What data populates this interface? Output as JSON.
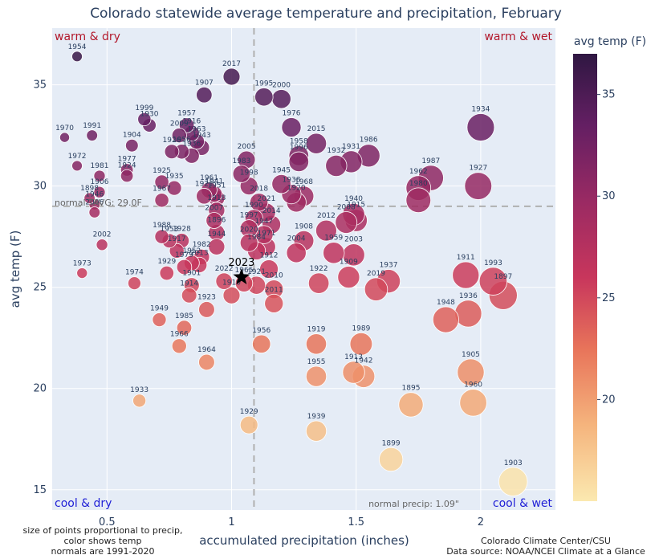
{
  "title": "Colorado statewide average temperature and precipitation, February",
  "chart_data": {
    "type": "scatter",
    "title": "Colorado statewide average temperature and precipitation, February",
    "xlabel": "accumulated precipitation (inches)",
    "ylabel": "avg temp (F)",
    "xlim": [
      0.28,
      2.3
    ],
    "ylim": [
      14.0,
      37.8
    ],
    "x_ticks": [
      "0.5",
      "1",
      "1.5",
      "2"
    ],
    "y_ticks": [
      "15",
      "20",
      "25",
      "30",
      "35"
    ],
    "grid": true,
    "point_size": "proportional to precip",
    "point_color": "avg temp",
    "normal_precip": 1.09,
    "normal_temp": 29.0,
    "normal_precip_label": "normal precip: 1.09\"",
    "normal_temp_label": "normal TAVG: 29.0F",
    "highlight": {
      "label": "2023",
      "x": 1.04,
      "y": 25.5
    },
    "quadrants": {
      "top_left": "warm & dry",
      "top_right": "warm & wet",
      "bottom_left": "cool & dry",
      "bottom_right": "cool & wet"
    },
    "colorbar": {
      "title": "avg temp (F)",
      "ticks": [
        "20",
        "25",
        "30",
        "35"
      ],
      "range": [
        15,
        37
      ],
      "colors": [
        "#fbe9b0",
        "#f5b47d",
        "#e8745a",
        "#c8365c",
        "#9a2a63",
        "#641f63",
        "#2f1742"
      ]
    },
    "points": [
      {
        "year": "1954",
        "x": 0.38,
        "y": 36.4
      },
      {
        "year": "2017",
        "x": 1.0,
        "y": 35.4
      },
      {
        "year": "1907",
        "x": 0.89,
        "y": 34.5
      },
      {
        "year": "1995",
        "x": 1.13,
        "y": 34.4
      },
      {
        "year": "2000",
        "x": 1.2,
        "y": 34.3
      },
      {
        "year": "1976",
        "x": 1.24,
        "y": 32.9
      },
      {
        "year": "1934",
        "x": 2.0,
        "y": 32.9
      },
      {
        "year": "1999",
        "x": 0.65,
        "y": 33.3
      },
      {
        "year": "1930",
        "x": 0.67,
        "y": 33.0
      },
      {
        "year": "1957",
        "x": 0.82,
        "y": 33.0
      },
      {
        "year": "1916",
        "x": 0.84,
        "y": 32.6
      },
      {
        "year": "2009",
        "x": 0.79,
        "y": 32.5
      },
      {
        "year": "1963",
        "x": 0.86,
        "y": 32.2
      },
      {
        "year": "1943",
        "x": 0.88,
        "y": 31.9
      },
      {
        "year": "1970",
        "x": 0.33,
        "y": 32.4
      },
      {
        "year": "1991",
        "x": 0.44,
        "y": 32.5
      },
      {
        "year": "1904",
        "x": 0.6,
        "y": 32.0
      },
      {
        "year": "1926",
        "x": 0.76,
        "y": 31.7
      },
      {
        "year": "1956b",
        "x": 0.8,
        "y": 31.7
      },
      {
        "year": "1936",
        "x": 0.84,
        "y": 31.5
      },
      {
        "year": "2015",
        "x": 1.34,
        "y": 32.1
      },
      {
        "year": "1986",
        "x": 1.55,
        "y": 31.5
      },
      {
        "year": "1931",
        "x": 1.48,
        "y": 31.2
      },
      {
        "year": "1958",
        "x": 1.27,
        "y": 31.5
      },
      {
        "year": "1996",
        "x": 1.27,
        "y": 31.2
      },
      {
        "year": "1932",
        "x": 1.42,
        "y": 31.0
      },
      {
        "year": "2005",
        "x": 1.06,
        "y": 31.3
      },
      {
        "year": "1972",
        "x": 0.38,
        "y": 31.0
      },
      {
        "year": "1981",
        "x": 0.47,
        "y": 30.5
      },
      {
        "year": "1977",
        "x": 0.58,
        "y": 30.8
      },
      {
        "year": "1924",
        "x": 0.58,
        "y": 30.5
      },
      {
        "year": "1925",
        "x": 0.72,
        "y": 30.2
      },
      {
        "year": "1935",
        "x": 0.77,
        "y": 29.9
      },
      {
        "year": "1983",
        "x": 1.04,
        "y": 30.6
      },
      {
        "year": "1998",
        "x": 1.07,
        "y": 30.0
      },
      {
        "year": "1945",
        "x": 1.2,
        "y": 30.1
      },
      {
        "year": "1987",
        "x": 1.8,
        "y": 30.4
      },
      {
        "year": "1962",
        "x": 1.75,
        "y": 29.9
      },
      {
        "year": "1927",
        "x": 1.99,
        "y": 30.0
      },
      {
        "year": "1980",
        "x": 1.75,
        "y": 29.3
      },
      {
        "year": "1961",
        "x": 0.91,
        "y": 29.8
      },
      {
        "year": "1921",
        "x": 0.89,
        "y": 29.5
      },
      {
        "year": "1941",
        "x": 0.93,
        "y": 29.6
      },
      {
        "year": "1951",
        "x": 0.94,
        "y": 29.4
      },
      {
        "year": "1967",
        "x": 0.72,
        "y": 29.3
      },
      {
        "year": "1906",
        "x": 0.47,
        "y": 29.7
      },
      {
        "year": "1898",
        "x": 0.43,
        "y": 29.4
      },
      {
        "year": "1946",
        "x": 0.45,
        "y": 29.1
      },
      {
        "year": "2006",
        "x": 0.45,
        "y": 28.7
      },
      {
        "year": "1938",
        "x": 1.24,
        "y": 29.6
      },
      {
        "year": "1968",
        "x": 1.29,
        "y": 29.5
      },
      {
        "year": "2018",
        "x": 1.11,
        "y": 29.2
      },
      {
        "year": "1920",
        "x": 1.26,
        "y": 29.2
      },
      {
        "year": "1918",
        "x": 0.94,
        "y": 28.8
      },
      {
        "year": "2021",
        "x": 1.14,
        "y": 28.7
      },
      {
        "year": "2007",
        "x": 0.93,
        "y": 28.3
      },
      {
        "year": "1990",
        "x": 1.09,
        "y": 28.4
      },
      {
        "year": "2014",
        "x": 1.16,
        "y": 28.1
      },
      {
        "year": "1940",
        "x": 1.49,
        "y": 28.6
      },
      {
        "year": "1915",
        "x": 1.5,
        "y": 28.3
      },
      {
        "year": "2008",
        "x": 1.46,
        "y": 28.2
      },
      {
        "year": "1997",
        "x": 1.07,
        "y": 27.9
      },
      {
        "year": "1947",
        "x": 1.13,
        "y": 27.6
      },
      {
        "year": "2012",
        "x": 1.38,
        "y": 27.8
      },
      {
        "year": "1988",
        "x": 0.72,
        "y": 27.5
      },
      {
        "year": "1896",
        "x": 0.94,
        "y": 27.7
      },
      {
        "year": "1953",
        "x": 0.75,
        "y": 27.3
      },
      {
        "year": "1928",
        "x": 0.8,
        "y": 27.3
      },
      {
        "year": "2002",
        "x": 0.48,
        "y": 27.1
      },
      {
        "year": "1908",
        "x": 1.29,
        "y": 27.3
      },
      {
        "year": "1971",
        "x": 1.14,
        "y": 27.0
      },
      {
        "year": "2004",
        "x": 1.26,
        "y": 26.7
      },
      {
        "year": "1959",
        "x": 1.41,
        "y": 26.7
      },
      {
        "year": "2003",
        "x": 1.49,
        "y": 26.6
      },
      {
        "year": "1944",
        "x": 0.94,
        "y": 27.0
      },
      {
        "year": "1917",
        "x": 0.78,
        "y": 26.8
      },
      {
        "year": "2020",
        "x": 1.07,
        "y": 27.2
      },
      {
        "year": "1984",
        "x": 1.1,
        "y": 26.8
      },
      {
        "year": "1982",
        "x": 0.88,
        "y": 26.5
      },
      {
        "year": "1952",
        "x": 0.84,
        "y": 26.2
      },
      {
        "year": "2013",
        "x": 0.87,
        "y": 26.1
      },
      {
        "year": "1979",
        "x": 0.81,
        "y": 26.0
      },
      {
        "year": "1929b",
        "x": 0.74,
        "y": 25.7
      },
      {
        "year": "1973",
        "x": 0.4,
        "y": 25.7
      },
      {
        "year": "1974",
        "x": 0.61,
        "y": 25.2
      },
      {
        "year": "1912",
        "x": 1.15,
        "y": 25.9
      },
      {
        "year": "1922",
        "x": 1.35,
        "y": 25.2
      },
      {
        "year": "1909",
        "x": 1.47,
        "y": 25.5
      },
      {
        "year": "1937",
        "x": 1.63,
        "y": 25.3
      },
      {
        "year": "2019",
        "x": 1.58,
        "y": 24.9
      },
      {
        "year": "1911",
        "x": 1.94,
        "y": 25.6
      },
      {
        "year": "1993",
        "x": 2.05,
        "y": 25.3
      },
      {
        "year": "1897",
        "x": 2.09,
        "y": 24.6
      },
      {
        "year": "2022",
        "x": 0.97,
        "y": 25.3
      },
      {
        "year": "1901",
        "x": 0.84,
        "y": 25.1
      },
      {
        "year": "1965",
        "x": 1.05,
        "y": 25.2
      },
      {
        "year": "1921b",
        "x": 1.1,
        "y": 25.1
      },
      {
        "year": "2010",
        "x": 1.17,
        "y": 24.9
      },
      {
        "year": "2011",
        "x": 1.17,
        "y": 24.2
      },
      {
        "year": "1914",
        "x": 0.83,
        "y": 24.6
      },
      {
        "year": "1910",
        "x": 1.0,
        "y": 24.6
      },
      {
        "year": "1923",
        "x": 0.9,
        "y": 23.9
      },
      {
        "year": "1949",
        "x": 0.71,
        "y": 23.4
      },
      {
        "year": "1985",
        "x": 0.81,
        "y": 23.0
      },
      {
        "year": "1948",
        "x": 1.86,
        "y": 23.4
      },
      {
        "year": "1936b",
        "x": 1.95,
        "y": 23.7
      },
      {
        "year": "1966",
        "x": 0.79,
        "y": 22.1
      },
      {
        "year": "1956",
        "x": 1.12,
        "y": 22.2
      },
      {
        "year": "1919",
        "x": 1.34,
        "y": 22.2
      },
      {
        "year": "1989",
        "x": 1.52,
        "y": 22.2
      },
      {
        "year": "1964",
        "x": 0.9,
        "y": 21.3
      },
      {
        "year": "1955",
        "x": 1.34,
        "y": 20.6
      },
      {
        "year": "1913",
        "x": 1.49,
        "y": 20.8
      },
      {
        "year": "1942",
        "x": 1.53,
        "y": 20.6
      },
      {
        "year": "1905",
        "x": 1.96,
        "y": 20.8
      },
      {
        "year": "1895",
        "x": 1.72,
        "y": 19.2
      },
      {
        "year": "1960",
        "x": 1.97,
        "y": 19.3
      },
      {
        "year": "1933",
        "x": 0.63,
        "y": 19.4
      },
      {
        "year": "1929",
        "x": 1.07,
        "y": 18.2
      },
      {
        "year": "1939",
        "x": 1.34,
        "y": 17.9
      },
      {
        "year": "1899",
        "x": 1.64,
        "y": 16.5
      },
      {
        "year": "1903",
        "x": 2.13,
        "y": 15.4
      }
    ]
  },
  "footnotes": {
    "left": [
      "size of points proportional to precip,",
      "color shows temp",
      "normals are 1991-2020"
    ],
    "right": [
      "Colorado Climate Center/CSU",
      "Data source: NOAA/NCEI Climate at a Glance"
    ]
  }
}
